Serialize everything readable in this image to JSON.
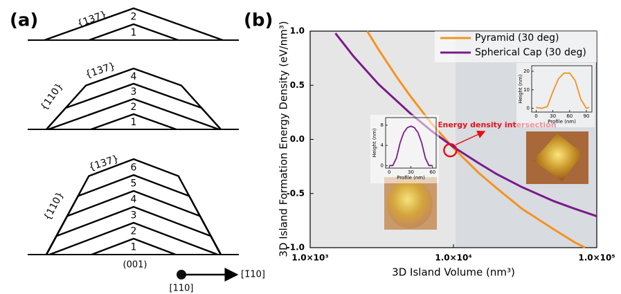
{
  "panel_a": {
    "label": "(a)",
    "diagrams": [
      {
        "facet_labels": [
          "{137}"
        ],
        "layers": [
          "1",
          "2"
        ]
      },
      {
        "facet_labels": [
          "{137}",
          "{110}"
        ],
        "layers": [
          "1",
          "2",
          "3",
          "4"
        ]
      },
      {
        "facet_labels": [
          "{137}",
          "{110}"
        ],
        "layers": [
          "1",
          "2",
          "3",
          "4",
          "5",
          "6"
        ]
      }
    ],
    "substrate": "(001)",
    "direction_from": "[110]",
    "direction_to": "[1̄10]"
  },
  "chart_data": {
    "type": "line",
    "panel_label": "(b)",
    "xlabel": "3D Island Volume (nm³)",
    "ylabel": "3D Island Formation Energy Density (eV/nm³)",
    "xscale": "log",
    "xlim": [
      1000,
      100000
    ],
    "xticks": [
      {
        "value": 1000,
        "label": "1.0×10³"
      },
      {
        "value": 10000,
        "label": "1.0×10⁴"
      },
      {
        "value": 100000,
        "label": "1.0×10⁵"
      }
    ],
    "ylim": [
      -1,
      1
    ],
    "yticks": [
      {
        "value": -1,
        "label": "-1.0"
      },
      {
        "value": -0.5,
        "label": "-0.5"
      },
      {
        "value": 0,
        "label": "0.0"
      },
      {
        "value": 0.5,
        "label": "0.5"
      },
      {
        "value": 1,
        "label": "1.0"
      }
    ],
    "legend": "upper right",
    "series": [
      {
        "name": "Pyramid (30 deg)",
        "color": "#f5921e",
        "x": [
          2500,
          3000,
          4000,
          5000,
          7000,
          10000,
          15000,
          20000,
          30000,
          50000,
          70000,
          83000
        ],
        "values": [
          1.0,
          0.83,
          0.58,
          0.4,
          0.15,
          -0.08,
          -0.31,
          -0.45,
          -0.64,
          -0.83,
          -0.95,
          -1.0
        ]
      },
      {
        "name": "Spherical Cap (30 deg)",
        "color": "#7a1a8a",
        "x": [
          1500,
          2000,
          3000,
          5000,
          7000,
          10000,
          15000,
          20000,
          30000,
          50000,
          70000,
          100000
        ],
        "values": [
          0.98,
          0.77,
          0.51,
          0.24,
          0.08,
          -0.07,
          -0.22,
          -0.32,
          -0.44,
          -0.57,
          -0.64,
          -0.71
        ]
      }
    ],
    "annotation": {
      "text": "Energy density intersection",
      "x": 9500,
      "y": -0.1
    }
  },
  "insets": [
    {
      "xlabel": "Profile (nm)",
      "ylabel": "Height (nm)",
      "color": "#7a1a8a",
      "xlim": [
        -5,
        65
      ],
      "ylim": [
        -0.5,
        9.5
      ],
      "xticks": [
        0,
        30,
        60
      ],
      "yticks": [
        0,
        4,
        8
      ],
      "x": [
        0,
        5,
        10,
        15,
        20,
        25,
        30,
        35,
        40,
        45,
        50,
        55,
        60
      ],
      "values": [
        0,
        0,
        1.5,
        4.5,
        6.5,
        7.5,
        7.8,
        7.5,
        6.5,
        4.5,
        1.5,
        0,
        0
      ]
    },
    {
      "xlabel": "Profile (nm)",
      "ylabel": "Height (nm)",
      "color": "#f5921e",
      "xlim": [
        -8,
        100
      ],
      "ylim": [
        -2,
        23
      ],
      "xticks": [
        0,
        30,
        60,
        90
      ],
      "yticks": [
        0,
        10,
        20
      ],
      "x": [
        0,
        10,
        20,
        30,
        40,
        50,
        60,
        70,
        80,
        90,
        95
      ],
      "values": [
        0.5,
        0,
        1,
        9,
        16,
        19,
        19,
        15,
        5,
        0,
        0.5
      ]
    }
  ]
}
